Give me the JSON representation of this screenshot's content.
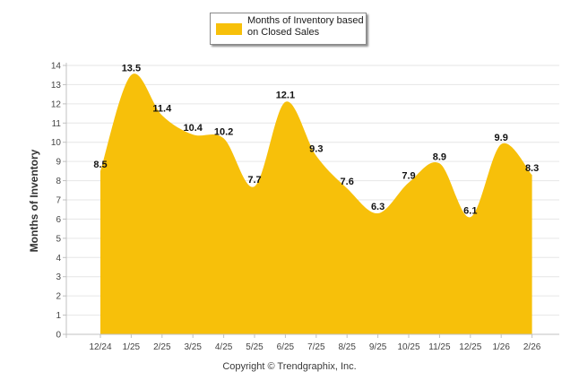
{
  "chart_data": {
    "type": "area",
    "categories": [
      "12/24",
      "1/25",
      "2/25",
      "3/25",
      "4/25",
      "5/25",
      "6/25",
      "7/25",
      "8/25",
      "9/25",
      "10/25",
      "11/25",
      "12/25",
      "1/26",
      "2/26"
    ],
    "series": [
      {
        "name": "Months of Inventory based on Closed Sales",
        "values": [
          8.5,
          13.5,
          11.4,
          10.4,
          10.2,
          7.7,
          12.1,
          9.3,
          7.6,
          6.3,
          7.9,
          8.9,
          6.1,
          9.9,
          8.3
        ]
      }
    ],
    "data_labels": [
      "8.5",
      "13.5",
      "11.4",
      "10.4",
      "10.2",
      "7.7",
      "12.1",
      "9.3",
      "7.6",
      "6.3",
      "7.9",
      "8.9",
      "6.1",
      "9.9",
      "8.3"
    ],
    "ylabel": "Months of Inventory",
    "xlabel": "",
    "ylim": [
      0,
      14
    ],
    "yticks": [
      0,
      1,
      2,
      3,
      4,
      5,
      6,
      7,
      8,
      9,
      10,
      11,
      12,
      13,
      14
    ],
    "grid": true,
    "legend_position": "top-center",
    "fill_color": "#F7C00A",
    "gridline_color": "#e6e6e6"
  },
  "legend": {
    "label": "Months of Inventory based on Closed Sales",
    "color": "#F7C00A"
  },
  "footer": {
    "copyright": "Copyright © Trendgraphix, Inc."
  }
}
